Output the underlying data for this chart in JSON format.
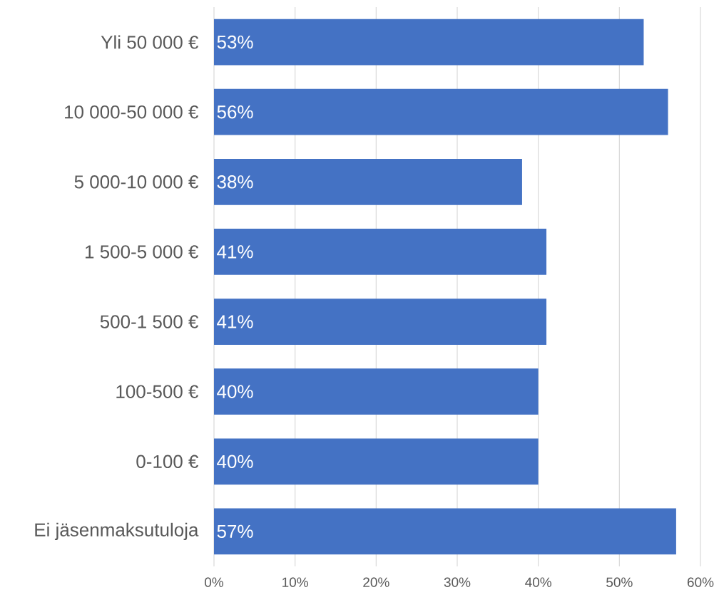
{
  "chart_data": {
    "type": "bar",
    "orientation": "horizontal",
    "categories": [
      "Yli 50 000 €",
      "10 000-50 000 €",
      "5 000-10 000 €",
      "1 500-5 000 €",
      "500-1 500 €",
      "100-500 €",
      "0-100 €",
      "Ei jäsenmaksutuloja"
    ],
    "values": [
      53,
      56,
      38,
      41,
      41,
      40,
      40,
      57
    ],
    "value_labels": [
      "53%",
      "56%",
      "38%",
      "41%",
      "41%",
      "40%",
      "40%",
      "57%"
    ],
    "color": "#4472c4",
    "xlim": [
      0,
      60
    ],
    "xticks": [
      {
        "value": 0,
        "label": "0%"
      },
      {
        "value": 10,
        "label": "10%"
      },
      {
        "value": 20,
        "label": "20%"
      },
      {
        "value": 30,
        "label": "30%"
      },
      {
        "value": 40,
        "label": "40%"
      },
      {
        "value": 50,
        "label": "50%"
      },
      {
        "value": 60,
        "label": "60%"
      }
    ],
    "grid": "x"
  }
}
